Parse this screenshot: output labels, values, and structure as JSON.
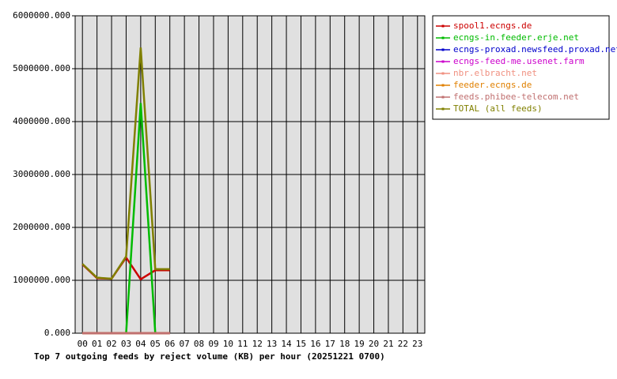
{
  "chart_data": {
    "type": "line",
    "title": "Top 7 outgoing feeds by reject volume (KB) per hour (20251221 0700)",
    "categories": [
      "00",
      "01",
      "02",
      "03",
      "04",
      "05",
      "06",
      "07",
      "08",
      "09",
      "10",
      "11",
      "12",
      "13",
      "14",
      "15",
      "16",
      "17",
      "18",
      "19",
      "20",
      "21",
      "22",
      "23"
    ],
    "series": [
      {
        "name": "spool1.ecngs.de",
        "color": "#cc0000",
        "values": [
          1300000,
          1040000,
          1030000,
          1430000,
          1020000,
          1190000,
          1190000,
          null,
          null,
          null,
          null,
          null,
          null,
          null,
          null,
          null,
          null,
          null,
          null,
          null,
          null,
          null,
          null,
          null
        ]
      },
      {
        "name": "ecngs-in.feeder.erje.net",
        "color": "#00bb00",
        "values": [
          0,
          0,
          0,
          0,
          4350000,
          0,
          0,
          null,
          null,
          null,
          null,
          null,
          null,
          null,
          null,
          null,
          null,
          null,
          null,
          null,
          null,
          null,
          null,
          null
        ]
      },
      {
        "name": "ecngs-proxad.newsfeed.proxad.net",
        "color": "#0000cc",
        "values": [
          0,
          0,
          0,
          0,
          0,
          0,
          0,
          null,
          null,
          null,
          null,
          null,
          null,
          null,
          null,
          null,
          null,
          null,
          null,
          null,
          null,
          null,
          null,
          null
        ]
      },
      {
        "name": "ecngs-feed-me.usenet.farm",
        "color": "#cc00cc",
        "values": [
          0,
          0,
          0,
          0,
          0,
          0,
          0,
          null,
          null,
          null,
          null,
          null,
          null,
          null,
          null,
          null,
          null,
          null,
          null,
          null,
          null,
          null,
          null,
          null
        ]
      },
      {
        "name": "nbr.elbracht.net",
        "color": "#f09080",
        "values": [
          0,
          0,
          0,
          0,
          0,
          0,
          0,
          null,
          null,
          null,
          null,
          null,
          null,
          null,
          null,
          null,
          null,
          null,
          null,
          null,
          null,
          null,
          null,
          null
        ]
      },
      {
        "name": "feeder.ecngs.de",
        "color": "#e08000",
        "values": [
          0,
          0,
          0,
          0,
          0,
          0,
          0,
          null,
          null,
          null,
          null,
          null,
          null,
          null,
          null,
          null,
          null,
          null,
          null,
          null,
          null,
          null,
          null,
          null
        ]
      },
      {
        "name": "feeds.phibee-telecom.net",
        "color": "#c07070",
        "values": [
          0,
          0,
          0,
          0,
          0,
          0,
          0,
          null,
          null,
          null,
          null,
          null,
          null,
          null,
          null,
          null,
          null,
          null,
          null,
          null,
          null,
          null,
          null,
          null
        ]
      },
      {
        "name": "TOTAL (all feeds)",
        "color": "#808000",
        "values": [
          1310000,
          1050000,
          1030000,
          1450000,
          5400000,
          1210000,
          1210000,
          null,
          null,
          null,
          null,
          null,
          null,
          null,
          null,
          null,
          null,
          null,
          null,
          null,
          null,
          null,
          null,
          null
        ]
      }
    ],
    "ylim": [
      0,
      6000000
    ],
    "yticks": [
      {
        "value": 0,
        "label": "0.000"
      },
      {
        "value": 1000000,
        "label": "1000000.000"
      },
      {
        "value": 2000000,
        "label": "2000000.000"
      },
      {
        "value": 3000000,
        "label": "3000000.000"
      },
      {
        "value": 4000000,
        "label": "4000000.000"
      },
      {
        "value": 5000000,
        "label": "5000000.000"
      },
      {
        "value": 6000000,
        "label": "6000000.000"
      }
    ],
    "grid": true,
    "legend_position": "right",
    "plot_background": "#e0e0e0"
  }
}
